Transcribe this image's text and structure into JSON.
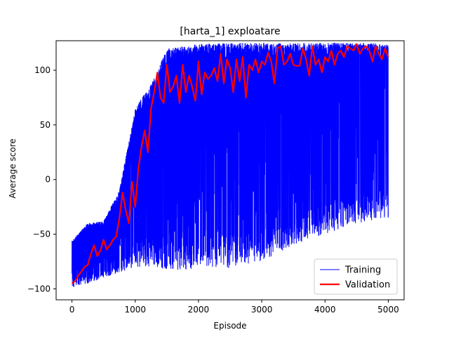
{
  "chart_data": {
    "type": "line",
    "title": "[harta_1] exploatare",
    "xlabel": "Episode",
    "ylabel": "Average score",
    "xlim": [
      -250,
      5250
    ],
    "ylim": [
      -110,
      127
    ],
    "xticks": [
      0,
      1000,
      2000,
      3000,
      4000,
      5000
    ],
    "xtick_labels": [
      "0",
      "1000",
      "2000",
      "3000",
      "4000",
      "5000"
    ],
    "yticks": [
      -100,
      -50,
      0,
      50,
      100
    ],
    "ytick_labels": [
      "−100",
      "−50",
      "0",
      "50",
      "100"
    ],
    "grid": false,
    "legend_position": "lower right",
    "series": [
      {
        "name": "Training",
        "color": "#0000ff",
        "style": "thin-line",
        "x_range": [
          0,
          5000
        ],
        "points_count": 5000,
        "envelope_x": [
          0,
          250,
          500,
          750,
          1000,
          1250,
          1500,
          1750,
          2000,
          2500,
          3000,
          3500,
          4000,
          4500,
          5000
        ],
        "envelope_max": [
          -56,
          -40,
          -38,
          -10,
          65,
          88,
          120,
          122,
          124,
          125,
          125,
          125,
          125,
          125,
          125
        ],
        "envelope_min": [
          -99,
          -95,
          -90,
          -85,
          -80,
          -80,
          -82,
          -84,
          -80,
          -82,
          -75,
          -60,
          -50,
          -40,
          -35
        ]
      },
      {
        "name": "Validation",
        "color": "#ff0000",
        "style": "thick-line",
        "x": [
          0,
          50,
          100,
          150,
          200,
          250,
          300,
          350,
          400,
          450,
          500,
          550,
          600,
          650,
          700,
          750,
          800,
          850,
          900,
          950,
          1000,
          1050,
          1100,
          1150,
          1200,
          1250,
          1300,
          1350,
          1400,
          1450,
          1500,
          1550,
          1600,
          1650,
          1700,
          1750,
          1800,
          1850,
          1900,
          1950,
          2000,
          2050,
          2100,
          2150,
          2200,
          2250,
          2300,
          2350,
          2400,
          2450,
          2500,
          2550,
          2600,
          2650,
          2700,
          2750,
          2800,
          2850,
          2900,
          2950,
          3000,
          3050,
          3100,
          3150,
          3200,
          3250,
          3300,
          3350,
          3400,
          3450,
          3500,
          3550,
          3600,
          3650,
          3700,
          3750,
          3800,
          3850,
          3900,
          3950,
          4000,
          4050,
          4100,
          4150,
          4200,
          4250,
          4300,
          4350,
          4400,
          4450,
          4500,
          4550,
          4600,
          4650,
          4700,
          4750,
          4800,
          4850,
          4900,
          4950,
          5000
        ],
        "y": [
          -95,
          -93,
          -88,
          -84,
          -80,
          -78,
          -68,
          -60,
          -70,
          -65,
          -55,
          -64,
          -60,
          -55,
          -52,
          -35,
          -12,
          -28,
          -40,
          -2,
          -25,
          10,
          30,
          45,
          25,
          65,
          80,
          98,
          75,
          70,
          105,
          80,
          85,
          95,
          70,
          105,
          80,
          95,
          85,
          72,
          108,
          78,
          98,
          92,
          95,
          102,
          90,
          115,
          88,
          110,
          102,
          80,
          110,
          90,
          112,
          75,
          105,
          100,
          110,
          98,
          108,
          105,
          116,
          108,
          88,
          120,
          122,
          105,
          108,
          115,
          105,
          104,
          104,
          120,
          110,
          95,
          122,
          105,
          110,
          98,
          112,
          108,
          118,
          105,
          115,
          118,
          112,
          122,
          120,
          118,
          124,
          115,
          120,
          122,
          118,
          108,
          122,
          115,
          110,
          120,
          112
        ]
      }
    ]
  }
}
